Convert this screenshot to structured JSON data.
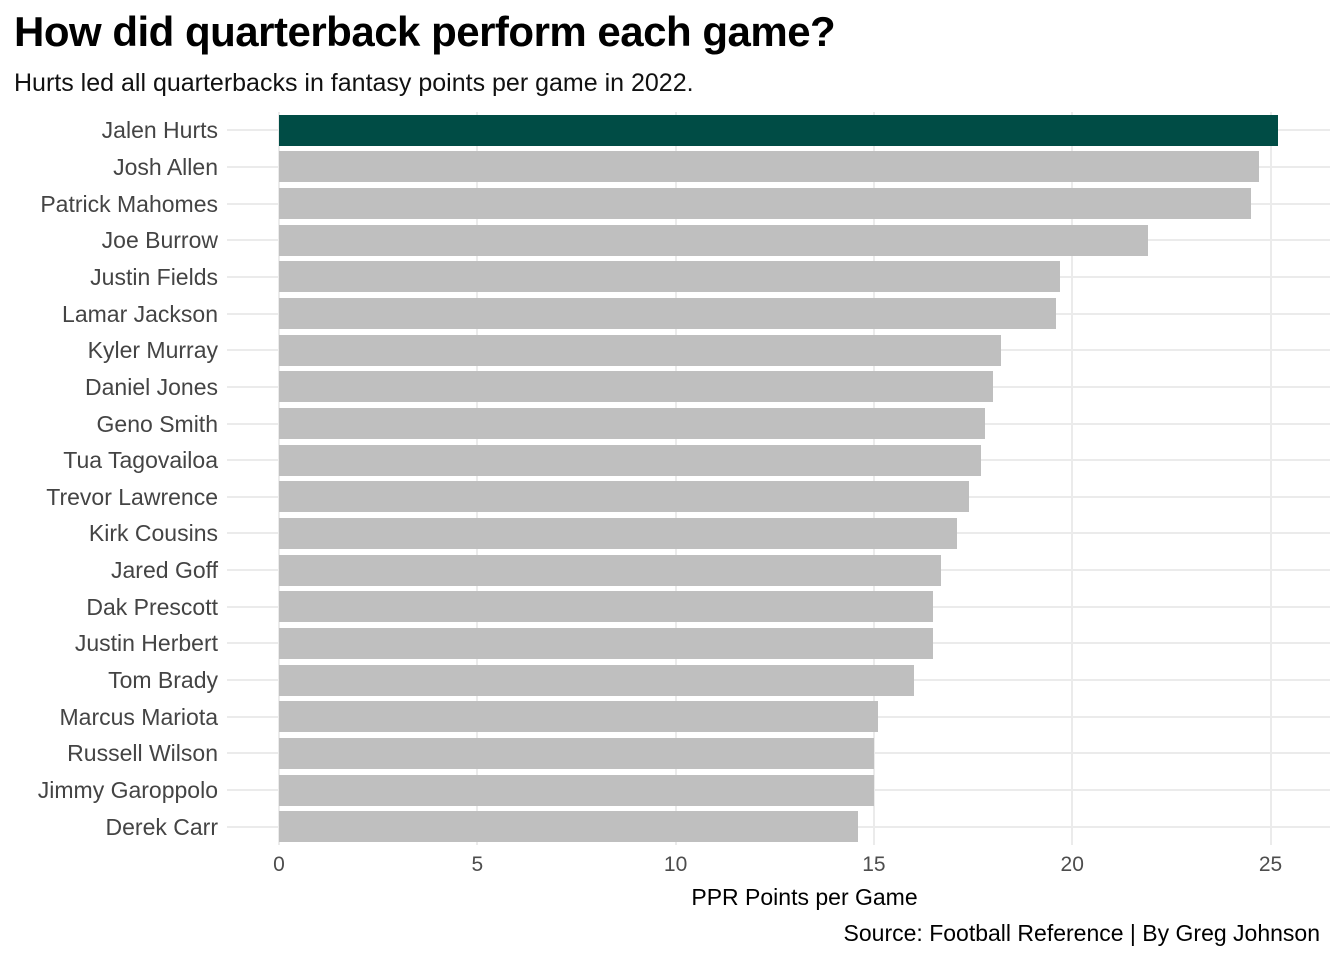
{
  "chart_data": {
    "type": "bar",
    "orientation": "horizontal",
    "title": "How did quarterback perform each game?",
    "subtitle": "Hurts led all quarterbacks in fantasy points per game in 2022.",
    "xlabel": "PPR Points per Game",
    "caption": "Source: Football Reference | By Greg Johnson",
    "categories": [
      "Jalen Hurts",
      "Josh Allen",
      "Patrick Mahomes",
      "Joe Burrow",
      "Justin Fields",
      "Lamar Jackson",
      "Kyler Murray",
      "Daniel Jones",
      "Geno Smith",
      "Tua Tagovailoa",
      "Trevor Lawrence",
      "Kirk Cousins",
      "Jared Goff",
      "Dak Prescott",
      "Justin Herbert",
      "Tom Brady",
      "Marcus Mariota",
      "Russell Wilson",
      "Jimmy Garoppolo",
      "Derek Carr"
    ],
    "values": [
      25.2,
      24.7,
      24.5,
      21.9,
      19.7,
      19.6,
      18.2,
      18.0,
      17.8,
      17.7,
      17.4,
      17.1,
      16.7,
      16.5,
      16.5,
      16.0,
      15.1,
      15.0,
      15.0,
      14.6
    ],
    "highlight_category": "Jalen Hurts",
    "highlight_index": 0,
    "xlim": [
      0,
      26.5
    ],
    "xticks": [
      0,
      5,
      10,
      15,
      20,
      25
    ],
    "grid": true,
    "legend": "none",
    "colors": {
      "highlight_bar": "#004c45",
      "bar": "#bfbfbf",
      "gridline": "#ebebeb",
      "axis_text": "#4d4d4d",
      "label_text": "#444444"
    }
  }
}
